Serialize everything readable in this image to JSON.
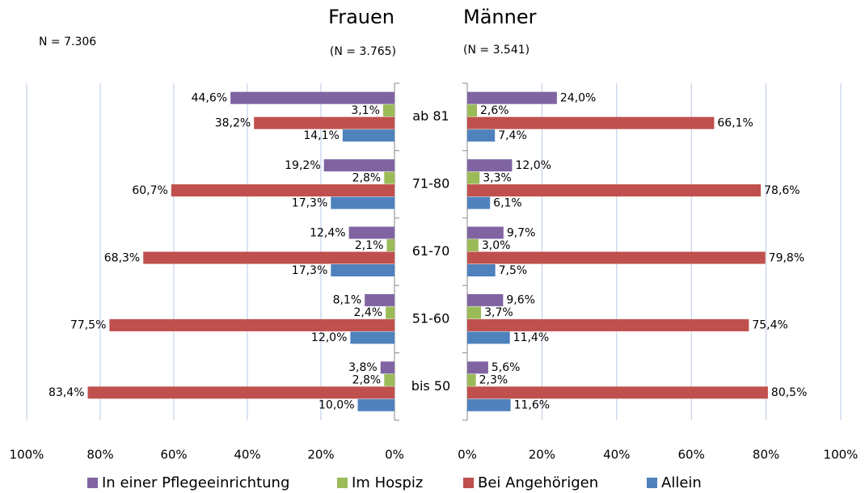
{
  "chart_data": {
    "type": "bar",
    "orientation": "horizontal",
    "annotation": "N = 7.306",
    "categories": [
      "ab 81",
      "71-80",
      "61-70",
      "51-60",
      "bis 50"
    ],
    "grid": true,
    "legend": "bottom",
    "panels": [
      {
        "title": "Frauen",
        "subtitle": "(N = 3.765)",
        "reversed": true,
        "xlim": [
          0,
          100
        ],
        "xticks": [
          {
            "value": 0,
            "label": "0%"
          },
          {
            "value": 20,
            "label": "20%"
          },
          {
            "value": 40,
            "label": "40%"
          },
          {
            "value": 60,
            "label": "60%"
          },
          {
            "value": 80,
            "label": "80%"
          },
          {
            "value": 100,
            "label": "100%"
          }
        ],
        "series": [
          {
            "name": "In einer Pflegeeinrichtung",
            "color": "#8064a2",
            "values": [
              44.6,
              19.2,
              12.4,
              8.1,
              3.8
            ],
            "value_labels": [
              "44,6%",
              "19,2%",
              "12,4%",
              "8,1%",
              "3,8%"
            ]
          },
          {
            "name": "Im Hospiz",
            "color": "#9bbb59",
            "values": [
              3.1,
              2.8,
              2.1,
              2.4,
              2.8
            ],
            "value_labels": [
              "3,1%",
              "2,8%",
              "2,1%",
              "2,4%",
              "2,8%"
            ]
          },
          {
            "name": "Bei Angehörigen",
            "color": "#c0504d",
            "values": [
              38.2,
              60.7,
              68.3,
              77.5,
              83.4
            ],
            "value_labels": [
              "38,2%",
              "60,7%",
              "68,3%",
              "77,5%",
              "83,4%"
            ]
          },
          {
            "name": "Allein",
            "color": "#4f81bd",
            "values": [
              14.1,
              17.3,
              17.3,
              12.0,
              10.0
            ],
            "value_labels": [
              "14,1%",
              "17,3%",
              "17,3%",
              "12,0%",
              "10,0%"
            ]
          }
        ]
      },
      {
        "title": "Männer",
        "subtitle": "(N = 3.541)",
        "reversed": false,
        "xlim": [
          0,
          100
        ],
        "xticks": [
          {
            "value": 0,
            "label": "0%"
          },
          {
            "value": 20,
            "label": "20%"
          },
          {
            "value": 40,
            "label": "40%"
          },
          {
            "value": 60,
            "label": "60%"
          },
          {
            "value": 80,
            "label": "80%"
          },
          {
            "value": 100,
            "label": "100%"
          }
        ],
        "series": [
          {
            "name": "In einer Pflegeeinrichtung",
            "color": "#8064a2",
            "values": [
              24.0,
              12.0,
              9.7,
              9.6,
              5.6
            ],
            "value_labels": [
              "24,0%",
              "12,0%",
              "9,7%",
              "9,6%",
              "5,6%"
            ]
          },
          {
            "name": "Im Hospiz",
            "color": "#9bbb59",
            "values": [
              2.6,
              3.3,
              3.0,
              3.7,
              2.3
            ],
            "value_labels": [
              "2,6%",
              "3,3%",
              "3,0%",
              "3,7%",
              "2,3%"
            ]
          },
          {
            "name": "Bei Angehörigen",
            "color": "#c0504d",
            "values": [
              66.1,
              78.6,
              79.8,
              75.4,
              80.5
            ],
            "value_labels": [
              "66,1%",
              "78,6%",
              "79,8%",
              "75,4%",
              "80,5%"
            ]
          },
          {
            "name": "Allein",
            "color": "#4f81bd",
            "values": [
              7.4,
              6.1,
              7.5,
              11.4,
              11.6
            ],
            "value_labels": [
              "7,4%",
              "6,1%",
              "7,5%",
              "11,4%",
              "11,6%"
            ]
          }
        ]
      }
    ]
  }
}
